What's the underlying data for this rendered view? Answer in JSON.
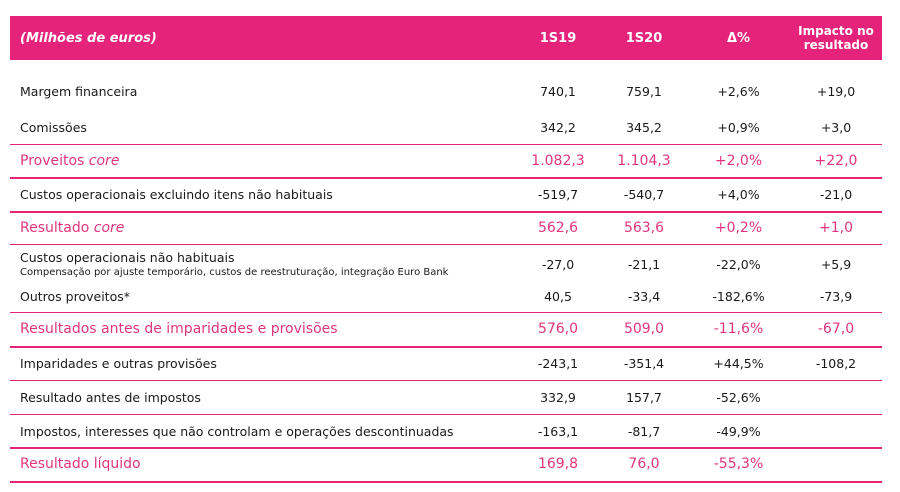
{
  "header": {
    "label_col": "(Milhões de euros)",
    "col_1s19": "1S19",
    "col_1s20": "1S20",
    "col_delta": "Δ%",
    "col_impact": "Impacto no resultado"
  },
  "rows": [
    {
      "label": "Margem financeira",
      "v1": "740,1",
      "v2": "759,1",
      "delta": "+2,6%",
      "impact": "+19,0"
    },
    {
      "label": "Comissões",
      "v1": "342,2",
      "v2": "345,2",
      "delta": "+0,9%",
      "impact": "+3,0"
    },
    {
      "label_main": "Proveitos ",
      "label_em": "core",
      "v1": "1.082,3",
      "v2": "1.104,3",
      "delta": "+2,0%",
      "impact": "+22,0"
    },
    {
      "label": "Custos operacionais excluindo itens não habituais",
      "v1": "-519,7",
      "v2": "-540,7",
      "delta": "+4,0%",
      "impact": "-21,0"
    },
    {
      "label_main": "Resultado ",
      "label_em": "core",
      "v1": "562,6",
      "v2": "563,6",
      "delta": "+0,2%",
      "impact": "+1,0"
    },
    {
      "label": "Custos operacionais não habituais",
      "sublabel": "Compensação por ajuste temporário, custos de reestruturação, integração Euro Bank",
      "v1": "-27,0",
      "v2": "-21,1",
      "delta": "-22,0%",
      "impact": "+5,9"
    },
    {
      "label": "Outros proveitos*",
      "v1": "40,5",
      "v2": "-33,4",
      "delta": "-182,6%",
      "impact": "-73,9"
    },
    {
      "label": "Resultados antes de imparidades e provisões",
      "v1": "576,0",
      "v2": "509,0",
      "delta": "-11,6%",
      "impact": "-67,0"
    },
    {
      "label": "Imparidades e outras provisões",
      "v1": "-243,1",
      "v2": "-351,4",
      "delta": "+44,5%",
      "impact": "-108,2"
    },
    {
      "label": "Resultado antes de impostos",
      "v1": "332,9",
      "v2": "157,7",
      "delta": "-52,6%",
      "impact": ""
    },
    {
      "label": "Impostos, interesses que não controlam e operações descontinuadas",
      "v1": "-163,1",
      "v2": "-81,7",
      "delta": "-49,9%",
      "impact": ""
    },
    {
      "label": "Resultado líquido",
      "v1": "169,8",
      "v2": "76,0",
      "delta": "-55,3%",
      "impact": ""
    }
  ],
  "colors": {
    "accent": "#e6237b",
    "highlight_text": "#e0357e"
  }
}
